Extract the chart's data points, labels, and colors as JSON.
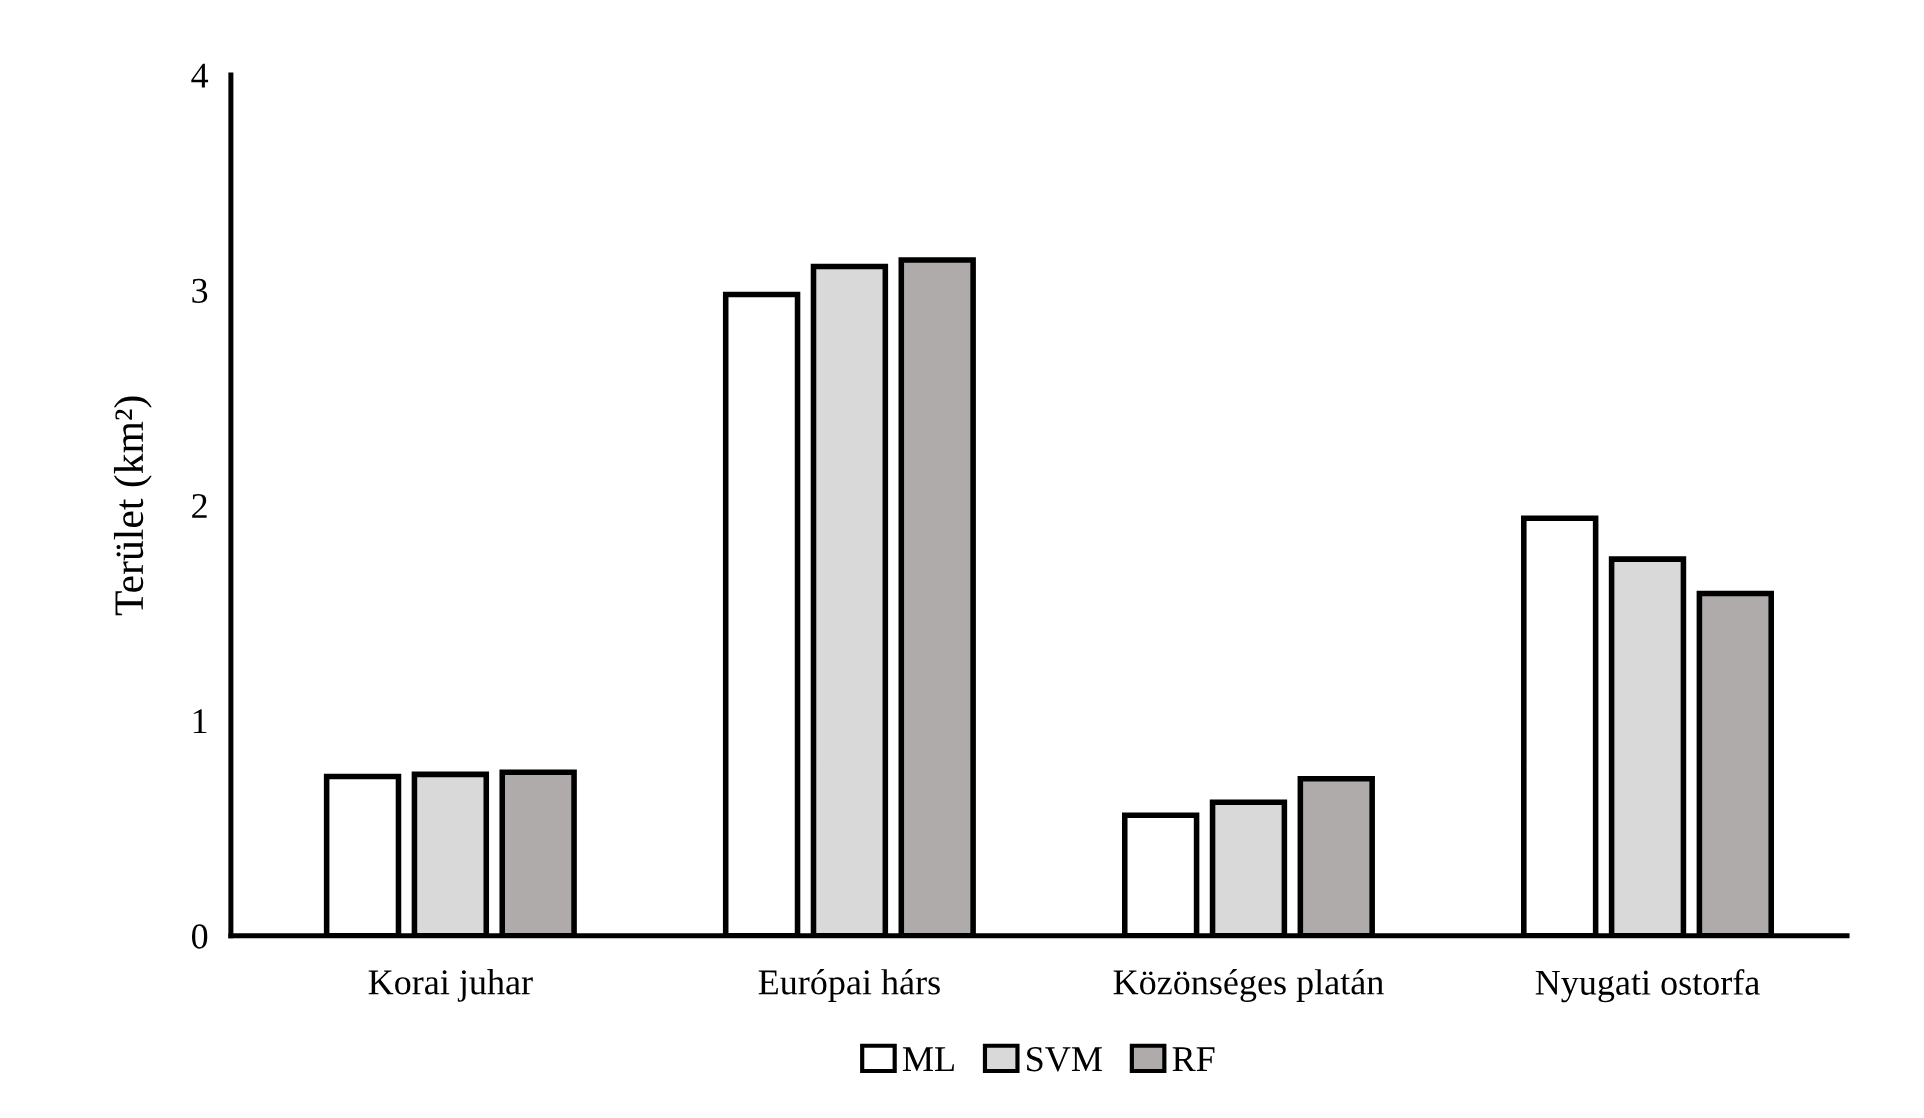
{
  "chart_data": {
    "type": "bar",
    "ylabel": "Terület (km²)",
    "categories": [
      "Korai juhar",
      "Európai hárs",
      "Közönséges platán",
      "Nyugati ostorfa"
    ],
    "series": [
      {
        "name": "ML",
        "color": "#ffffff",
        "values": [
          0.74,
          2.98,
          0.56,
          1.94
        ]
      },
      {
        "name": "SVM",
        "color": "#d9d9d9",
        "values": [
          0.75,
          3.11,
          0.62,
          1.75
        ]
      },
      {
        "name": "RF",
        "color": "#afabab",
        "values": [
          0.76,
          3.14,
          0.73,
          1.59
        ]
      }
    ],
    "ylim": [
      0,
      4
    ],
    "yticks": [
      0,
      1,
      2,
      3,
      4
    ],
    "grid": false,
    "legend": "bottom"
  }
}
